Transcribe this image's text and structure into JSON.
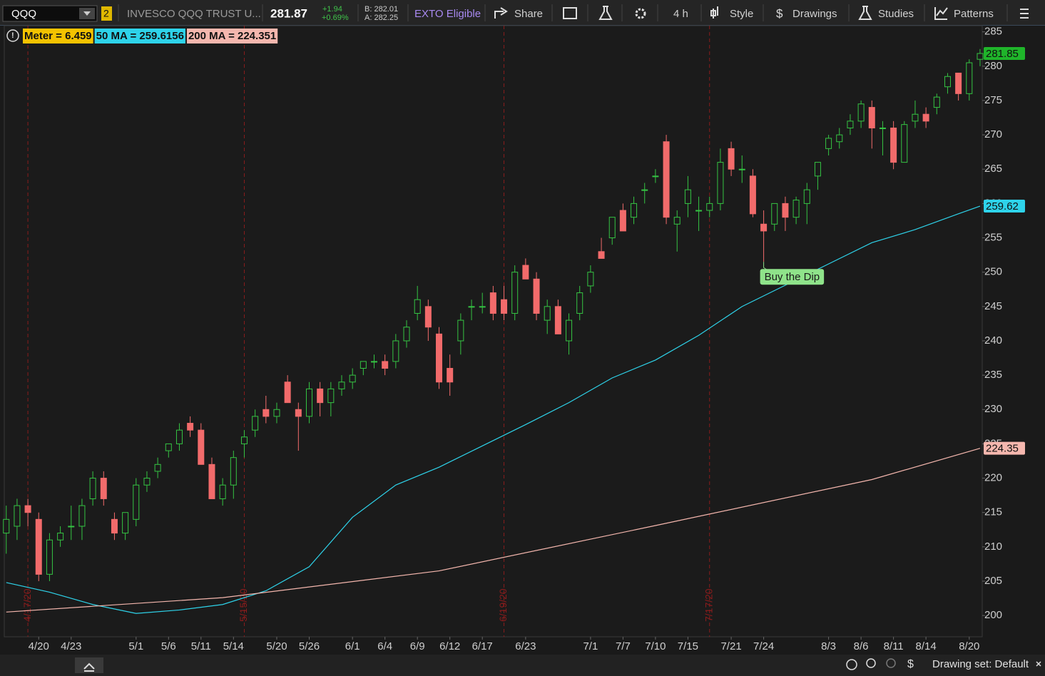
{
  "toolbar": {
    "symbol": "QQQ",
    "link": "2",
    "description": "INVESCO QQQ TRUST U...",
    "last": "281.87",
    "change": "+1.94",
    "change_pct": "+0.69%",
    "bid": "B: 282.01",
    "ask": "A: 282.25",
    "exto": "EXTO Eligible",
    "share": "Share",
    "interval": "4 h",
    "style": "Style",
    "drawings": "Drawings",
    "studies": "Studies",
    "patterns": "Patterns"
  },
  "chart_data": {
    "type": "candlestick",
    "meter_label": "Meter = 6.459",
    "open": [
      212,
      213,
      216,
      214,
      206,
      211,
      213,
      213,
      217,
      220,
      214,
      212,
      214,
      219,
      221,
      224,
      225,
      228,
      227,
      222,
      217,
      219,
      225,
      227,
      230,
      229,
      234,
      230,
      229,
      233,
      231,
      233,
      234,
      236,
      237,
      237,
      237,
      240,
      244,
      245,
      241,
      236,
      240,
      245,
      245,
      247,
      246,
      244,
      251,
      249,
      243,
      245,
      240,
      244,
      248,
      253,
      255,
      259,
      258,
      262,
      264,
      269,
      257,
      260,
      259,
      259,
      260,
      268,
      265,
      264,
      257,
      257,
      260,
      258,
      260,
      264,
      268,
      269,
      271,
      272,
      274,
      271,
      271,
      266,
      272,
      273,
      274,
      277,
      279,
      276,
      281
    ],
    "high": [
      216,
      217,
      217,
      215,
      212,
      213,
      216,
      217,
      221,
      221,
      215,
      215,
      220,
      221,
      223,
      225,
      228,
      229,
      228,
      223,
      220,
      224,
      227,
      230,
      232,
      231,
      235,
      231,
      234,
      234,
      234,
      235,
      236,
      237,
      238,
      238,
      241,
      243,
      248,
      246,
      242,
      238,
      244,
      246,
      247,
      248,
      248,
      251,
      252,
      250,
      246,
      246,
      244,
      248,
      251,
      255,
      258,
      260,
      261,
      263,
      265,
      270,
      259,
      264,
      261,
      261,
      268,
      269,
      267,
      265,
      259,
      260,
      261,
      261,
      263,
      266,
      270,
      271,
      273,
      275,
      275,
      272,
      272,
      272,
      275,
      274,
      276,
      279,
      279,
      281,
      282.5
    ],
    "low": [
      209,
      211,
      213,
      205,
      205,
      210,
      211,
      211,
      216,
      216,
      211,
      211,
      213,
      218,
      220,
      223,
      224,
      226,
      222,
      217,
      216,
      217,
      223,
      226,
      228,
      228,
      231,
      224,
      228,
      229,
      229,
      232,
      233,
      235,
      236,
      235,
      236,
      239,
      243,
      240,
      233,
      232,
      238,
      243,
      244,
      243,
      243,
      243,
      249,
      243,
      241,
      241,
      238,
      243,
      247,
      252,
      254,
      256,
      257,
      260,
      263,
      257,
      253,
      258,
      256,
      258,
      259,
      264,
      263,
      258,
      251.5,
      256,
      256,
      257,
      257,
      262,
      267,
      268,
      270,
      271,
      268,
      267,
      265,
      266,
      271,
      271,
      273,
      276,
      275,
      275,
      280
    ],
    "close": [
      214,
      216,
      215,
      206,
      211,
      212,
      213,
      216,
      220,
      217,
      212,
      215,
      219,
      220,
      222,
      225,
      227,
      227,
      222,
      217,
      219,
      223,
      226,
      229,
      229,
      230,
      231,
      229,
      233,
      231,
      233,
      234,
      235,
      237,
      237,
      236,
      240,
      242,
      246,
      242,
      234,
      234,
      243,
      245,
      245,
      244,
      244,
      250,
      249,
      244,
      245,
      241,
      243,
      247,
      250,
      252,
      258,
      256,
      260,
      262,
      264,
      258,
      258,
      262,
      259,
      260,
      266,
      265,
      265,
      258.5,
      256,
      260,
      258,
      260.5,
      262,
      266,
      269.5,
      270,
      272,
      274.5,
      271,
      271,
      266,
      271.5,
      273,
      272,
      275.5,
      278.5,
      276,
      280.5,
      281.85
    ],
    "up_color": "#35c443",
    "down_color": "#f26b6b",
    "last_tag": 281.85,
    "last_tag_color": "#1fb52a",
    "xlim": [
      -0.05,
      90.2
    ],
    "xticks": [
      {
        "value": 3,
        "label": "4/20"
      },
      {
        "value": 6,
        "label": "4/23"
      },
      {
        "value": 12,
        "label": "5/1"
      },
      {
        "value": 15,
        "label": "5/6"
      },
      {
        "value": 18,
        "label": "5/11"
      },
      {
        "value": 21,
        "label": "5/14"
      },
      {
        "value": 25,
        "label": "5/20"
      },
      {
        "value": 28,
        "label": "5/26"
      },
      {
        "value": 32,
        "label": "6/1"
      },
      {
        "value": 35,
        "label": "6/4"
      },
      {
        "value": 38,
        "label": "6/9"
      },
      {
        "value": 41,
        "label": "6/12"
      },
      {
        "value": 44,
        "label": "6/17"
      },
      {
        "value": 48,
        "label": "6/23"
      },
      {
        "value": 54,
        "label": "7/1"
      },
      {
        "value": 57,
        "label": "7/7"
      },
      {
        "value": 60,
        "label": "7/10"
      },
      {
        "value": 63,
        "label": "7/15"
      },
      {
        "value": 67,
        "label": "7/21"
      },
      {
        "value": 70,
        "label": "7/24"
      },
      {
        "value": 76,
        "label": "8/3"
      },
      {
        "value": 79,
        "label": "8/6"
      },
      {
        "value": 82,
        "label": "8/11"
      },
      {
        "value": 85,
        "label": "8/14"
      },
      {
        "value": 89,
        "label": "8/20"
      }
    ],
    "ylim": [
      196.9,
      285.9
    ],
    "yticks": [
      200,
      205,
      210,
      215,
      220,
      225,
      230,
      235,
      240,
      245,
      250,
      255,
      260,
      265,
      270,
      275,
      280,
      285
    ],
    "ma": [
      {
        "label": "50 MA = 259.6156",
        "color": "#2ed3ea",
        "tag": 259.62,
        "x": [
          0,
          4,
          8,
          12,
          16,
          20,
          24,
          28,
          32,
          36,
          40,
          44,
          48,
          52,
          56,
          60,
          64,
          68,
          72,
          76,
          80,
          84,
          88,
          90
        ],
        "values": [
          204.8,
          203.4,
          201.6,
          200.3,
          200.8,
          201.6,
          203.6,
          207.1,
          214.3,
          219,
          221.6,
          224.7,
          227.8,
          231,
          234.6,
          237.2,
          240.8,
          245,
          248.1,
          251.2,
          254.3,
          256.2,
          258.5,
          259.62
        ]
      },
      {
        "label": "200 MA = 224.351",
        "color": "#f5b7ae",
        "tag": 224.35,
        "x": [
          0,
          20,
          40,
          60,
          80,
          90
        ],
        "values": [
          200.5,
          202.6,
          206.5,
          213.1,
          219.8,
          224.35
        ]
      }
    ],
    "markers": [
      {
        "x": 2,
        "label": "4/17/20"
      },
      {
        "x": 22,
        "label": "5/15/20"
      },
      {
        "x": 46,
        "label": "6/19/20"
      },
      {
        "x": 65,
        "label": "7/17/20"
      }
    ],
    "annotation": {
      "x": 70,
      "label": "Buy the Dip"
    }
  },
  "footer": {
    "drawing_set": "Drawing set: Default"
  }
}
